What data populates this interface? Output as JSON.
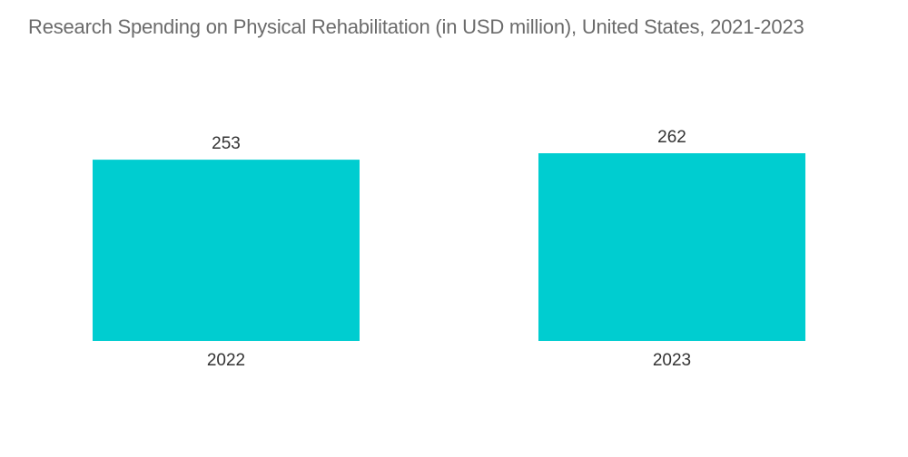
{
  "chart_data": {
    "type": "bar",
    "title": "Research Spending on Physical Rehabilitation (in USD million), United States, 2021-2023",
    "categories": [
      "2022",
      "2023"
    ],
    "values": [
      253,
      262
    ],
    "xlabel": "",
    "ylabel": "",
    "ylim": [
      0,
      262
    ],
    "grid": false,
    "legend": "none",
    "bar_color": "#00cdd0",
    "data_labels": true
  }
}
